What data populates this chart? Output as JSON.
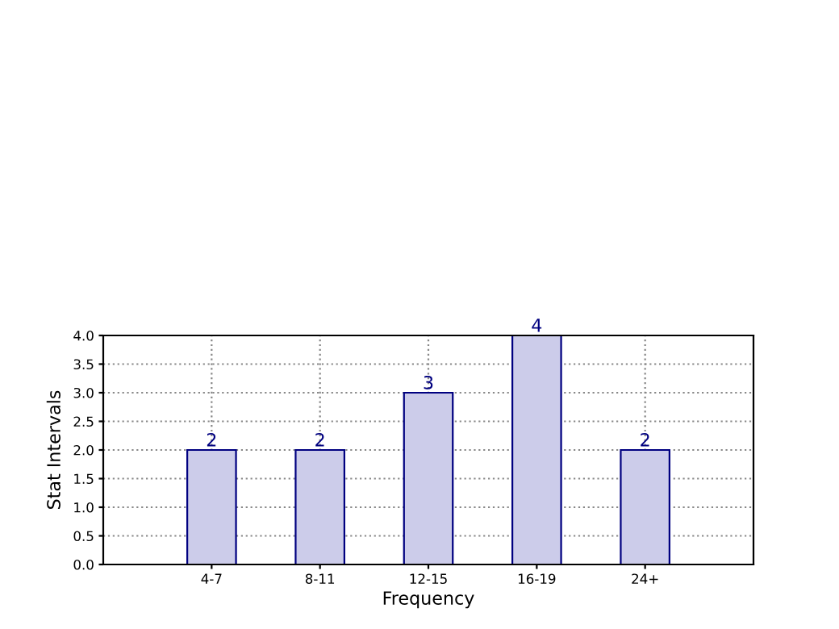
{
  "chart_data": {
    "type": "bar",
    "xlabel": "Frequency",
    "ylabel": "Stat Intervals",
    "categories": [
      "4-7",
      "8-11",
      "12-15",
      "16-19",
      "24+"
    ],
    "values": [
      2,
      2,
      3,
      4,
      2
    ],
    "color": "#ccccea",
    "ylim": [
      0,
      4
    ],
    "yticks": [
      {
        "value": 0,
        "label": "0.0"
      },
      {
        "value": 0.5,
        "label": "0.5"
      },
      {
        "value": 1,
        "label": "1.0"
      },
      {
        "value": 1.5,
        "label": "1.5"
      },
      {
        "value": 2,
        "label": "2.0"
      },
      {
        "value": 2.5,
        "label": "2.5"
      },
      {
        "value": 3,
        "label": "3.0"
      },
      {
        "value": 3.5,
        "label": "3.5"
      },
      {
        "value": 4,
        "label": "4.0"
      }
    ],
    "grid": true,
    "data_labels": true,
    "line_style": "dotted"
  }
}
